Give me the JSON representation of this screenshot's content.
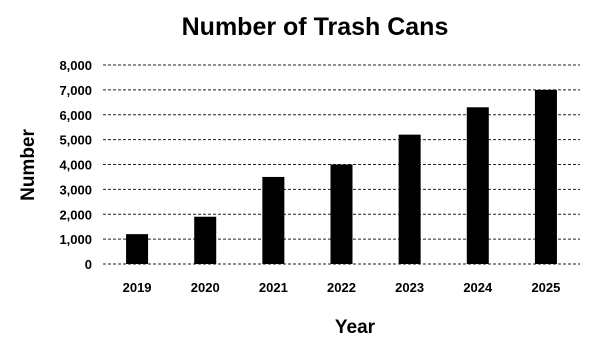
{
  "chart_data": {
    "type": "bar",
    "title": "Number of Trash Cans",
    "xlabel": "Year",
    "ylabel": "Number",
    "categories": [
      "2019",
      "2020",
      "2021",
      "2022",
      "2023",
      "2024",
      "2025"
    ],
    "values": [
      1200,
      1900,
      3500,
      4000,
      5200,
      6300,
      7000
    ],
    "ylim": [
      0,
      8000
    ],
    "yticks": [
      "0",
      "1,000",
      "2,000",
      "3,000",
      "4,000",
      "5,000",
      "6,000",
      "7,000",
      "8,000"
    ],
    "ytick_values": [
      0,
      1000,
      2000,
      3000,
      4000,
      5000,
      6000,
      7000,
      8000
    ],
    "grid": true,
    "legend": "none",
    "bar_color": "#000000"
  }
}
